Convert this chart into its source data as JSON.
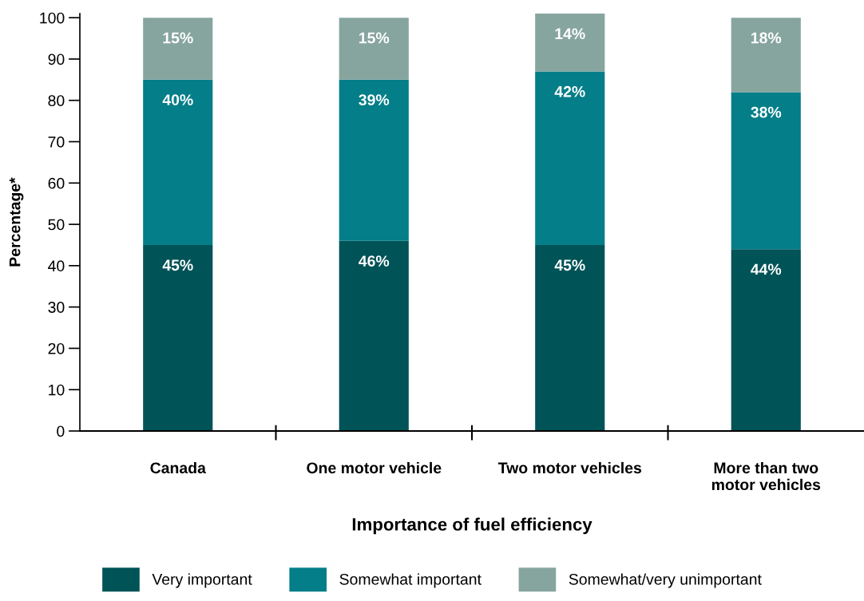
{
  "chart_data": {
    "type": "bar",
    "stacked": true,
    "xlabel": "Importance of fuel efficiency",
    "ylabel": "Percentage*",
    "categories": [
      "Canada",
      "One motor vehicle",
      "Two motor vehicles",
      "More than two\nmotor vehicles"
    ],
    "series": [
      {
        "name": "Very important",
        "color": "#005357",
        "values": [
          45,
          46,
          45,
          44
        ],
        "value_labels": [
          "45%",
          "46%",
          "45%",
          "44%"
        ]
      },
      {
        "name": "Somewhat important",
        "color": "#047e88",
        "values": [
          40,
          39,
          42,
          38
        ],
        "value_labels": [
          "40%",
          "39%",
          "42%",
          "38%"
        ]
      },
      {
        "name": "Somewhat/very unimportant",
        "color": "#87a59f",
        "values": [
          15,
          15,
          14,
          18
        ],
        "value_labels": [
          "15%",
          "15%",
          "14%",
          "18%"
        ]
      }
    ],
    "ylim": [
      0,
      101
    ],
    "yticks": [
      0,
      10,
      20,
      30,
      40,
      50,
      60,
      70,
      80,
      90,
      100
    ],
    "grid": false,
    "legend": "bottom"
  }
}
